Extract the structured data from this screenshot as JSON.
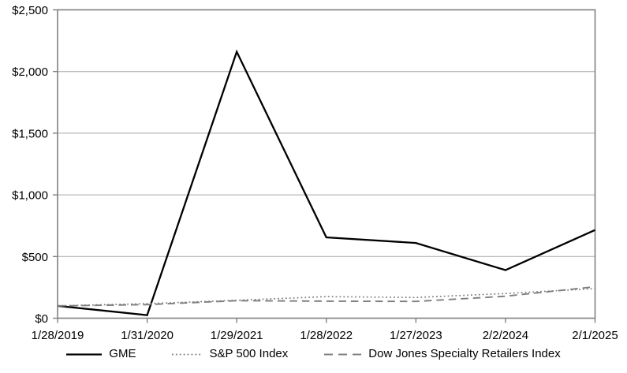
{
  "chart_data": {
    "type": "line",
    "x": [
      "1/28/2019",
      "1/31/2020",
      "1/29/2021",
      "1/28/2022",
      "1/27/2023",
      "2/2/2024",
      "2/1/2025"
    ],
    "y_ticks": [
      {
        "value": 0,
        "label": "$0"
      },
      {
        "value": 500,
        "label": "$500"
      },
      {
        "value": 1000,
        "label": "$1,000"
      },
      {
        "value": 1500,
        "label": "$1,500"
      },
      {
        "value": 2000,
        "label": "$2,000"
      },
      {
        "value": 2500,
        "label": "$2,500"
      }
    ],
    "ylim": [
      0,
      2500
    ],
    "grid": "horizontal",
    "legend_position": "bottom",
    "series": [
      {
        "name": "GME",
        "style": "solid",
        "color": "#000000",
        "stroke_width": 2.3,
        "values": [
          100,
          25,
          2160,
          655,
          610,
          390,
          715
        ]
      },
      {
        "name": "S&P 500 Index",
        "style": "dotted",
        "color": "#7f7f7f",
        "stroke_width": 1.7,
        "values": [
          100,
          118,
          145,
          175,
          168,
          200,
          240
        ]
      },
      {
        "name": "Dow Jones Specialty Retailers Index",
        "style": "dashed",
        "color": "#7f7f7f",
        "stroke_width": 1.9,
        "values": [
          100,
          110,
          142,
          138,
          136,
          178,
          255
        ]
      }
    ],
    "axis_colors": {
      "border": "#808080",
      "gridline": "#a6a6a6",
      "tick": "#808080",
      "label": "#000000"
    }
  }
}
